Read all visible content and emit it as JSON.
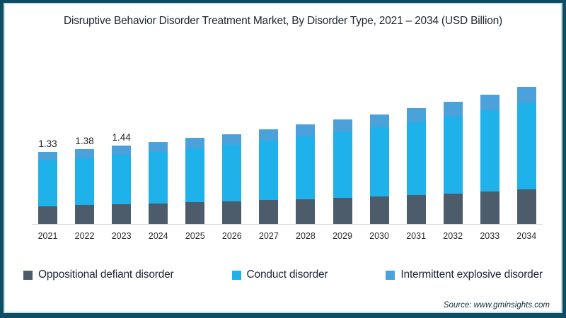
{
  "title": "Disruptive Behavior Disorder Treatment Market, By Disorder Type, 2021 – 2034 (USD Billion)",
  "source": "Source: www.gminsights.com",
  "frame": {
    "border_color": "#0E4D63",
    "inner_line_color": "#C3DFEA",
    "axis_line_color": "#DBDBDB"
  },
  "legend": [
    {
      "label": "Oppositional defiant disorder",
      "color": "#4D5C6B"
    },
    {
      "label": "Conduct disorder",
      "color": "#1FB1EA"
    },
    {
      "label": "Intermittent explosive disorder",
      "color": "#4BA2DA"
    }
  ],
  "chart_data": {
    "type": "bar",
    "stacked": true,
    "title": "Disruptive Behavior Disorder Treatment Market, By Disorder Type, 2021 – 2034 (USD Billion)",
    "unit": "USD Billion",
    "xlabel": "",
    "ylabel": "",
    "ylim": [
      0,
      2.7
    ],
    "grid": false,
    "legend_position": "bottom",
    "categories": [
      "2021",
      "2022",
      "2023",
      "2024",
      "2025",
      "2026",
      "2027",
      "2028",
      "2029",
      "2030",
      "2031",
      "2032",
      "2033",
      "2034"
    ],
    "series": [
      {
        "name": "Oppositional defiant disorder",
        "color": "#4D5C6B",
        "values": [
          0.33,
          0.35,
          0.36,
          0.38,
          0.4,
          0.42,
          0.44,
          0.46,
          0.48,
          0.51,
          0.53,
          0.56,
          0.6,
          0.63
        ]
      },
      {
        "name": "Conduct disorder",
        "color": "#1FB1EA",
        "values": [
          0.84,
          0.86,
          0.91,
          0.95,
          0.99,
          1.04,
          1.09,
          1.15,
          1.21,
          1.27,
          1.34,
          1.42,
          1.49,
          1.59
        ]
      },
      {
        "name": "Intermittent explosive disorder",
        "color": "#4BA2DA",
        "values": [
          0.16,
          0.17,
          0.17,
          0.18,
          0.19,
          0.2,
          0.21,
          0.22,
          0.23,
          0.24,
          0.26,
          0.27,
          0.29,
          0.3
        ]
      }
    ],
    "totals": [
      1.33,
      1.38,
      1.44,
      1.51,
      1.58,
      1.66,
      1.74,
      1.83,
      1.92,
      2.02,
      2.13,
      2.25,
      2.38,
      2.52
    ],
    "data_labels": [
      "1.33",
      "1.38",
      "1.44",
      "",
      "",
      "",
      "",
      "",
      "",
      "",
      "",
      "",
      "",
      ""
    ]
  }
}
